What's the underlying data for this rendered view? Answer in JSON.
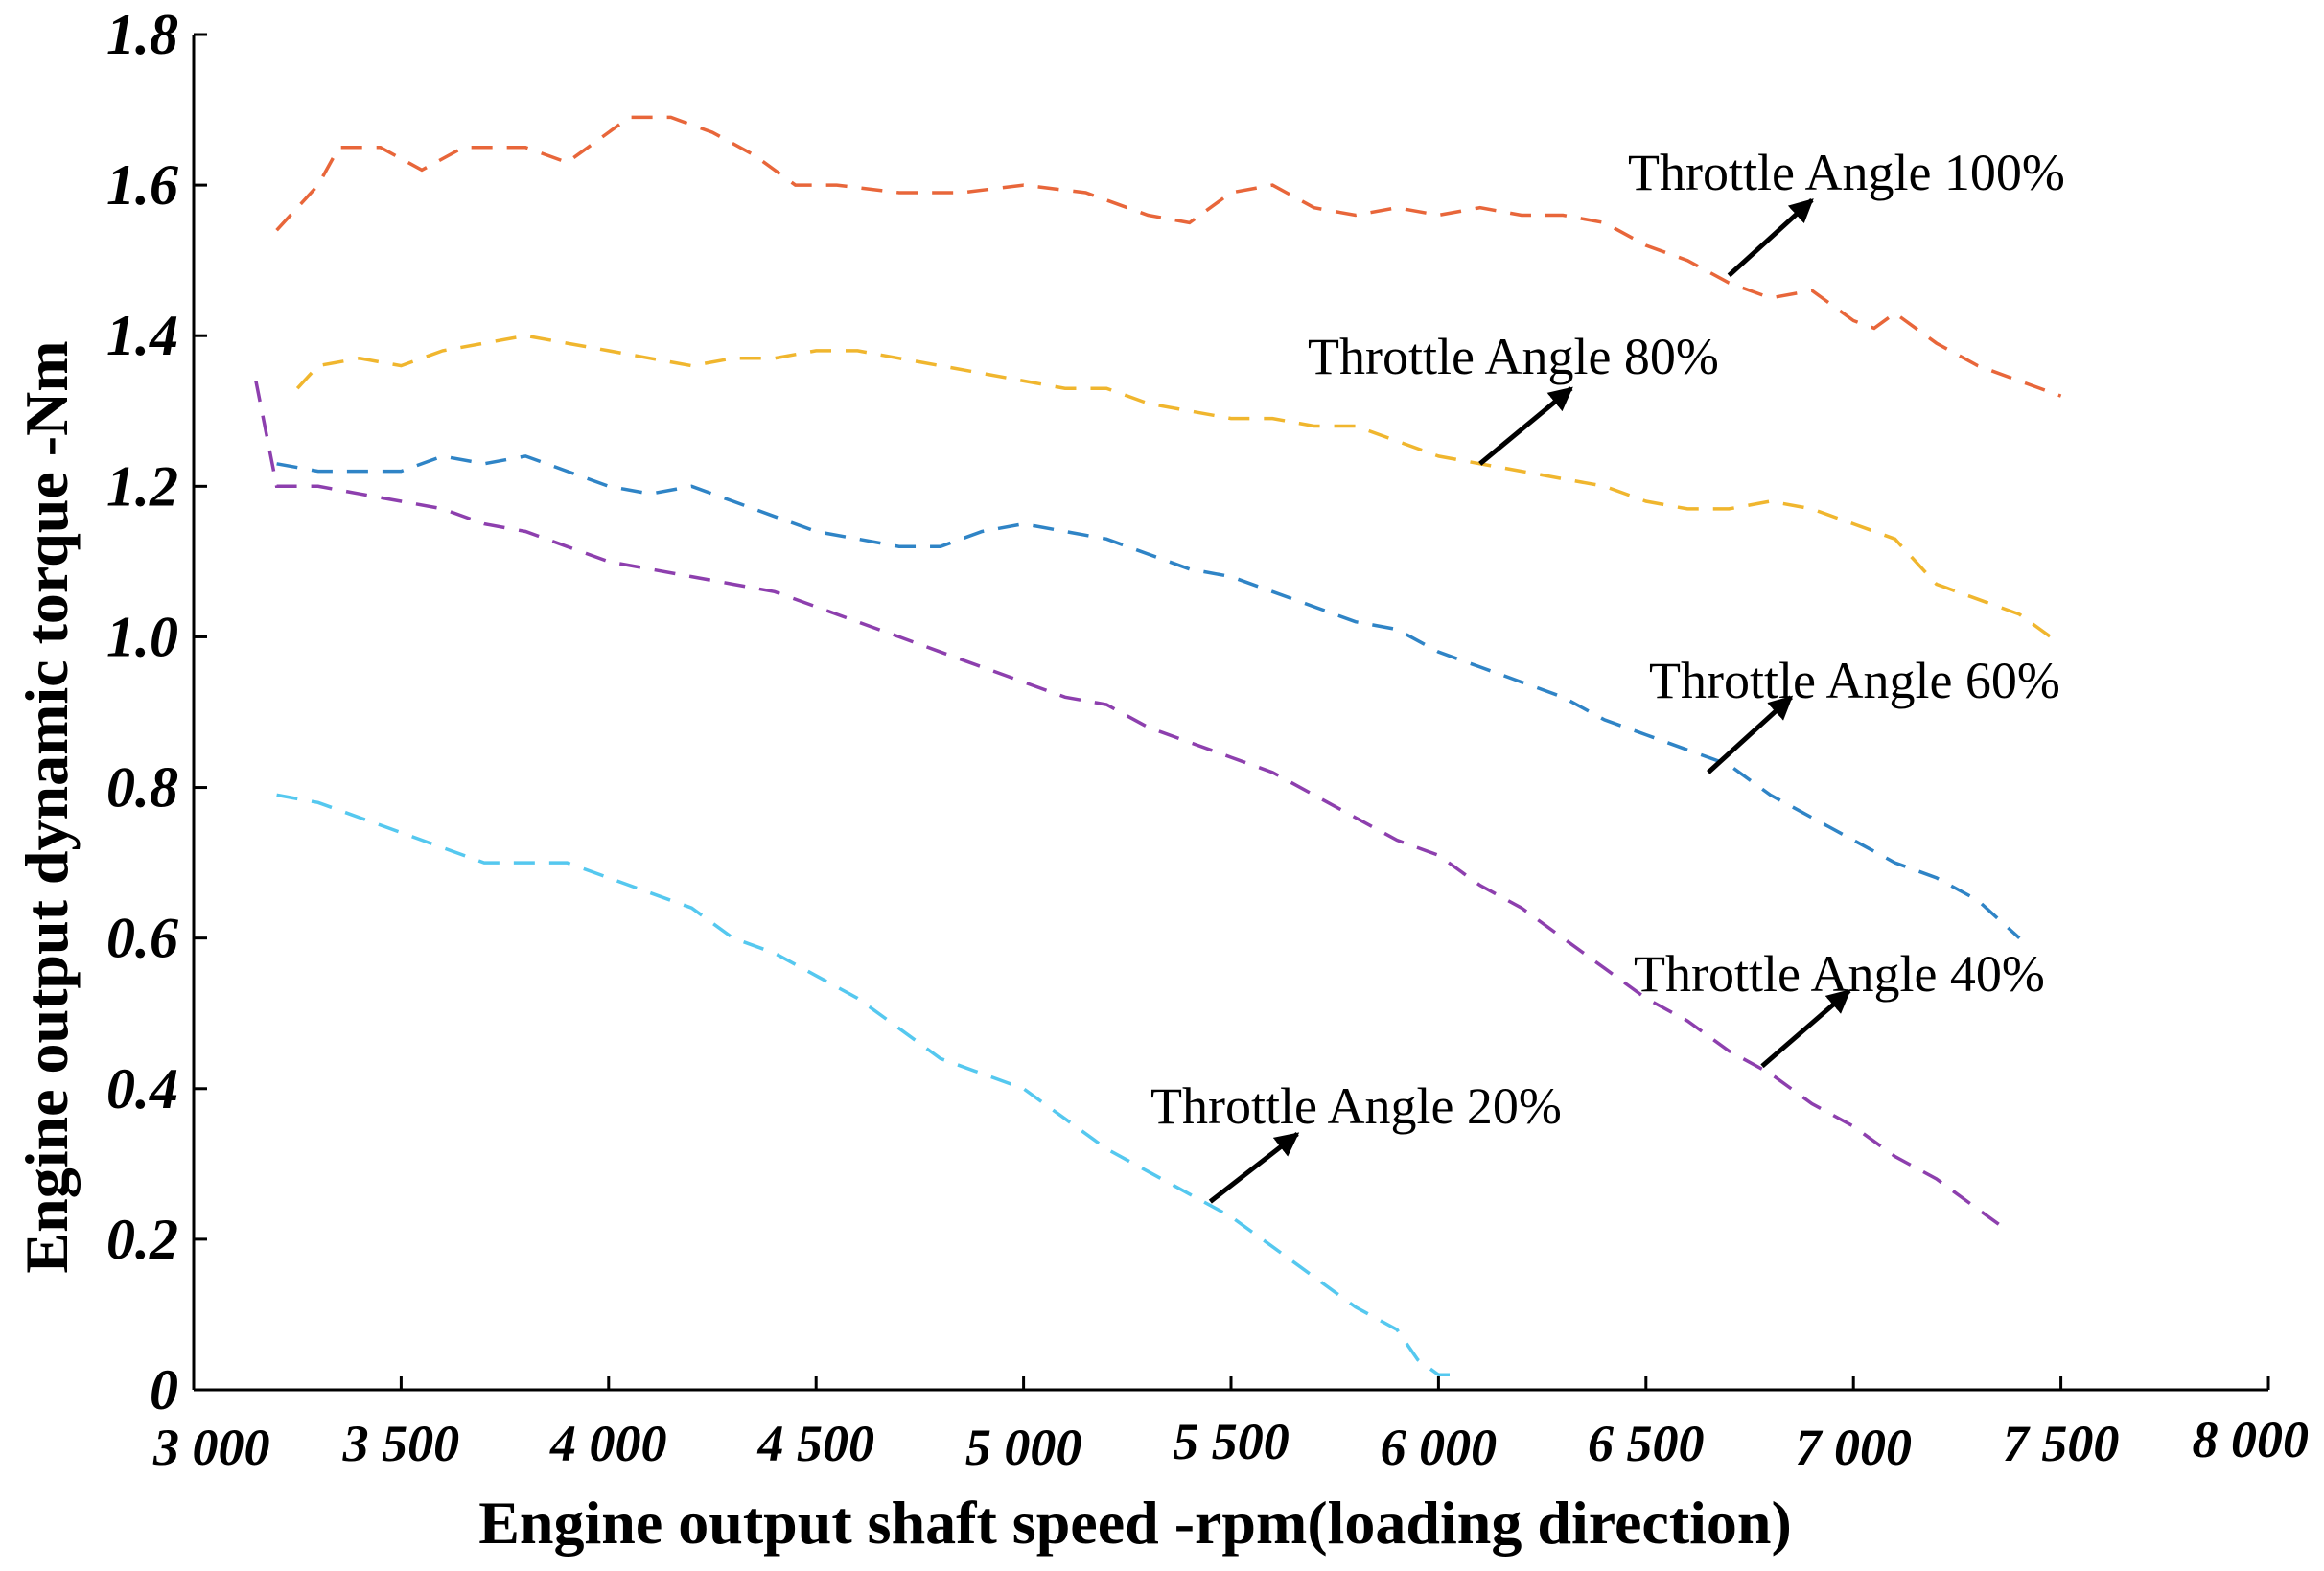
{
  "chart_data": {
    "type": "line",
    "title": "",
    "xlabel": "Engine output shaft speed -rpm(loading direction)",
    "ylabel": "Engine output dynamic torque -Nm",
    "xlim": [
      3000,
      8000
    ],
    "ylim": [
      0,
      1.8
    ],
    "x_tick_labels": [
      "3 000",
      "3 500",
      "4 000",
      "4 500",
      "5 000",
      "5 500",
      "6 000",
      "6 500",
      "7 000",
      "7 500",
      "8 000"
    ],
    "y_tick_labels": [
      "0",
      "0.2",
      "0.4",
      "0.6",
      "0.8",
      "1.0",
      "1.2",
      "1.4",
      "1.6",
      "1.8"
    ],
    "grid": false,
    "series": [
      {
        "name": "Throttle Angle 100%",
        "color": "#e8663a",
        "x": [
          3200,
          3300,
          3350,
          3450,
          3550,
          3650,
          3800,
          3900,
          3950,
          4050,
          4150,
          4250,
          4350,
          4450,
          4550,
          4700,
          4850,
          5000,
          5150,
          5300,
          5400,
          5500,
          5600,
          5700,
          5800,
          5900,
          6000,
          6100,
          6200,
          6300,
          6400,
          6500,
          6600,
          6700,
          6800,
          6900,
          7000,
          7050,
          7100,
          7200,
          7300,
          7400,
          7500
        ],
        "y": [
          1.54,
          1.6,
          1.65,
          1.65,
          1.62,
          1.65,
          1.65,
          1.63,
          1.65,
          1.69,
          1.69,
          1.67,
          1.64,
          1.6,
          1.6,
          1.59,
          1.59,
          1.6,
          1.59,
          1.56,
          1.55,
          1.59,
          1.6,
          1.57,
          1.56,
          1.57,
          1.56,
          1.57,
          1.56,
          1.56,
          1.55,
          1.52,
          1.5,
          1.47,
          1.45,
          1.46,
          1.42,
          1.41,
          1.43,
          1.39,
          1.36,
          1.34,
          1.32
        ]
      },
      {
        "name": "Throttle Angle 80%",
        "color": "#f0b62e",
        "x": [
          3250,
          3300,
          3400,
          3500,
          3600,
          3700,
          3800,
          3900,
          4000,
          4100,
          4200,
          4300,
          4400,
          4500,
          4600,
          4700,
          4800,
          4900,
          5000,
          5100,
          5200,
          5300,
          5400,
          5500,
          5600,
          5700,
          5800,
          5900,
          6000,
          6100,
          6200,
          6300,
          6400,
          6500,
          6600,
          6700,
          6800,
          6900,
          7000,
          7100,
          7200,
          7300,
          7400,
          7500
        ],
        "y": [
          1.33,
          1.36,
          1.37,
          1.36,
          1.38,
          1.39,
          1.4,
          1.39,
          1.38,
          1.37,
          1.36,
          1.37,
          1.37,
          1.38,
          1.38,
          1.37,
          1.36,
          1.35,
          1.34,
          1.33,
          1.33,
          1.31,
          1.3,
          1.29,
          1.29,
          1.28,
          1.28,
          1.26,
          1.24,
          1.23,
          1.22,
          1.21,
          1.2,
          1.18,
          1.17,
          1.17,
          1.18,
          1.17,
          1.15,
          1.13,
          1.07,
          1.05,
          1.03,
          0.99
        ]
      },
      {
        "name": "Throttle Angle 60%",
        "color": "#2f84c6",
        "x": [
          3200,
          3300,
          3400,
          3500,
          3600,
          3700,
          3800,
          3900,
          4000,
          4100,
          4200,
          4300,
          4400,
          4500,
          4600,
          4700,
          4800,
          4900,
          5000,
          5100,
          5200,
          5300,
          5400,
          5500,
          5600,
          5700,
          5800,
          5900,
          6000,
          6100,
          6200,
          6300,
          6400,
          6500,
          6600,
          6700,
          6800,
          6900,
          7000,
          7100,
          7200,
          7300,
          7400
        ],
        "y": [
          1.23,
          1.22,
          1.22,
          1.22,
          1.24,
          1.23,
          1.24,
          1.22,
          1.2,
          1.19,
          1.2,
          1.18,
          1.16,
          1.14,
          1.13,
          1.12,
          1.12,
          1.14,
          1.15,
          1.14,
          1.13,
          1.11,
          1.09,
          1.08,
          1.06,
          1.04,
          1.02,
          1.01,
          0.98,
          0.96,
          0.94,
          0.92,
          0.89,
          0.87,
          0.85,
          0.83,
          0.79,
          0.76,
          0.73,
          0.7,
          0.68,
          0.65,
          0.6
        ]
      },
      {
        "name": "Throttle Angle 40%",
        "color": "#8d3fae",
        "x": [
          3150,
          3200,
          3300,
          3400,
          3500,
          3600,
          3700,
          3800,
          3900,
          4000,
          4100,
          4200,
          4300,
          4400,
          4500,
          4600,
          4700,
          4800,
          4900,
          5000,
          5100,
          5200,
          5300,
          5400,
          5500,
          5600,
          5700,
          5800,
          5900,
          6000,
          6100,
          6200,
          6300,
          6400,
          6500,
          6600,
          6700,
          6800,
          6900,
          7000,
          7100,
          7200,
          7300,
          7350
        ],
        "y": [
          1.34,
          1.2,
          1.2,
          1.19,
          1.18,
          1.17,
          1.15,
          1.14,
          1.12,
          1.1,
          1.09,
          1.08,
          1.07,
          1.06,
          1.04,
          1.02,
          1.0,
          0.98,
          0.96,
          0.94,
          0.92,
          0.91,
          0.88,
          0.86,
          0.84,
          0.82,
          0.79,
          0.76,
          0.73,
          0.71,
          0.67,
          0.64,
          0.6,
          0.56,
          0.52,
          0.49,
          0.45,
          0.42,
          0.38,
          0.35,
          0.31,
          0.28,
          0.24,
          0.22
        ]
      },
      {
        "name": "Throttle Angle 20%",
        "color": "#55c8ef",
        "x": [
          3200,
          3300,
          3400,
          3500,
          3600,
          3700,
          3800,
          3900,
          4000,
          4100,
          4200,
          4300,
          4400,
          4500,
          4600,
          4700,
          4800,
          4900,
          5000,
          5100,
          5200,
          5300,
          5400,
          5500,
          5600,
          5700,
          5800,
          5900,
          5950,
          6000,
          6050
        ],
        "y": [
          0.79,
          0.78,
          0.76,
          0.74,
          0.72,
          0.7,
          0.7,
          0.7,
          0.68,
          0.66,
          0.64,
          0.6,
          0.58,
          0.55,
          0.52,
          0.48,
          0.44,
          0.42,
          0.4,
          0.36,
          0.32,
          0.29,
          0.26,
          0.23,
          0.19,
          0.15,
          0.11,
          0.08,
          0.04,
          0.02,
          0.02
        ]
      }
    ],
    "annotations": [
      {
        "text": "Throttle Angle 100%",
        "arrow_to": [
          6700,
          1.48
        ],
        "arrow_from": [
          6900,
          1.58
        ]
      },
      {
        "text": "Throttle Angle 80%",
        "arrow_to": [
          6100,
          1.23
        ],
        "arrow_from": [
          6320,
          1.33
        ]
      },
      {
        "text": "Throttle Angle 60%",
        "arrow_to": [
          6650,
          0.82
        ],
        "arrow_from": [
          6850,
          0.92
        ]
      },
      {
        "text": "Throttle Angle 40%",
        "arrow_to": [
          6780,
          0.43
        ],
        "arrow_from": [
          6990,
          0.53
        ]
      },
      {
        "text": "Throttle Angle 20%",
        "arrow_to": [
          5450,
          0.25
        ],
        "arrow_from": [
          5660,
          0.34
        ]
      }
    ]
  }
}
